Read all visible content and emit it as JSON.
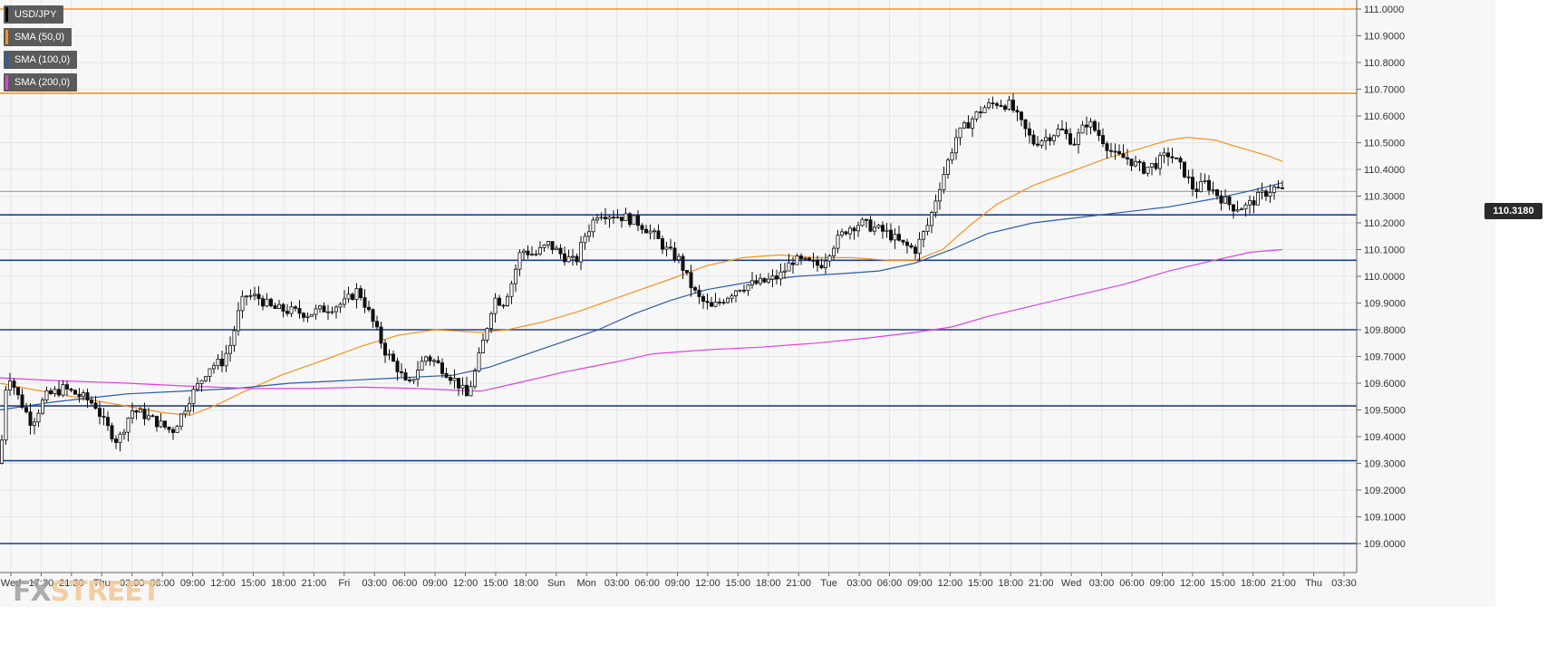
{
  "chart_data": {
    "type": "candlestick",
    "symbol": "USD/JPY",
    "legend": [
      {
        "label": "USD/JPY",
        "color": "#000000"
      },
      {
        "label": "SMA (50,0)",
        "color": "#f7931e"
      },
      {
        "label": "SMA (100,0)",
        "color": "#2a5caa"
      },
      {
        "label": "SMA (200,0)",
        "color": "#e040e0"
      }
    ],
    "y_ticks": [
      "111.0000",
      "110.9000",
      "110.8000",
      "110.7000",
      "110.6000",
      "110.5000",
      "110.4000",
      "110.3000",
      "110.2000",
      "110.1000",
      "110.0000",
      "109.9000",
      "109.8000",
      "109.7000",
      "109.6000",
      "109.5000",
      "109.4000",
      "109.3000",
      "109.2000",
      "109.1000",
      "109.0000"
    ],
    "ylim": [
      108.93,
      111.03
    ],
    "x_ticks": [
      "Wed",
      "17:30",
      "21:30",
      "Thu",
      "03:00",
      "06:00",
      "09:00",
      "12:00",
      "15:00",
      "18:00",
      "21:00",
      "Fri",
      "03:00",
      "06:00",
      "09:00",
      "12:00",
      "15:00",
      "18:00",
      "Sun",
      "Mon",
      "03:00",
      "06:00",
      "09:00",
      "12:00",
      "15:00",
      "18:00",
      "21:00",
      "Tue",
      "03:00",
      "06:00",
      "09:00",
      "12:00",
      "15:00",
      "18:00",
      "21:00",
      "Wed",
      "03:00",
      "06:00",
      "09:00",
      "12:00",
      "15:00",
      "18:00",
      "21:00",
      "Thu",
      "03:30"
    ],
    "horizontal_levels": [
      {
        "value": 111.0,
        "color": "#f7931e"
      },
      {
        "value": 110.685,
        "color": "#f7931e"
      },
      {
        "value": 110.23,
        "color": "#1f3f8f"
      },
      {
        "value": 110.06,
        "color": "#1f3f8f"
      },
      {
        "value": 109.8,
        "color": "#1f3f8f"
      },
      {
        "value": 109.515,
        "color": "#1f3f8f"
      },
      {
        "value": 109.31,
        "color": "#1f3f8f"
      },
      {
        "value": 109.0,
        "color": "#1f3f8f"
      }
    ],
    "last_price": "110.3180",
    "close_path": [
      [
        0,
        109.3
      ],
      [
        8,
        109.65
      ],
      [
        20,
        109.55
      ],
      [
        35,
        109.45
      ],
      [
        50,
        109.55
      ],
      [
        70,
        109.58
      ],
      [
        90,
        109.55
      ],
      [
        105,
        109.52
      ],
      [
        115,
        109.45
      ],
      [
        130,
        109.38
      ],
      [
        145,
        109.5
      ],
      [
        160,
        109.48
      ],
      [
        175,
        109.45
      ],
      [
        190,
        109.42
      ],
      [
        200,
        109.48
      ],
      [
        210,
        109.55
      ],
      [
        220,
        109.6
      ],
      [
        230,
        109.66
      ],
      [
        245,
        109.68
      ],
      [
        255,
        109.75
      ],
      [
        262,
        109.85
      ],
      [
        270,
        109.93
      ],
      [
        285,
        109.92
      ],
      [
        300,
        109.88
      ],
      [
        320,
        109.87
      ],
      [
        340,
        109.86
      ],
      [
        360,
        109.88
      ],
      [
        380,
        109.9
      ],
      [
        395,
        109.95
      ],
      [
        405,
        109.88
      ],
      [
        415,
        109.8
      ],
      [
        425,
        109.72
      ],
      [
        440,
        109.65
      ],
      [
        450,
        109.58
      ],
      [
        460,
        109.65
      ],
      [
        470,
        109.7
      ],
      [
        480,
        109.68
      ],
      [
        490,
        109.65
      ],
      [
        505,
        109.6
      ],
      [
        515,
        109.55
      ],
      [
        525,
        109.65
      ],
      [
        535,
        109.78
      ],
      [
        545,
        109.92
      ],
      [
        555,
        109.9
      ],
      [
        565,
        109.98
      ],
      [
        575,
        110.1
      ],
      [
        590,
        110.08
      ],
      [
        605,
        110.12
      ],
      [
        620,
        110.08
      ],
      [
        635,
        110.05
      ],
      [
        645,
        110.15
      ],
      [
        660,
        110.24
      ],
      [
        675,
        110.23
      ],
      [
        690,
        110.22
      ],
      [
        705,
        110.2
      ],
      [
        720,
        110.16
      ],
      [
        735,
        110.1
      ],
      [
        750,
        110.06
      ],
      [
        760,
        109.98
      ],
      [
        770,
        109.92
      ],
      [
        785,
        109.88
      ],
      [
        800,
        109.92
      ],
      [
        815,
        109.96
      ],
      [
        830,
        109.97
      ],
      [
        845,
        109.98
      ],
      [
        860,
        110.0
      ],
      [
        875,
        110.06
      ],
      [
        890,
        110.05
      ],
      [
        905,
        110.04
      ],
      [
        920,
        110.12
      ],
      [
        935,
        110.18
      ],
      [
        950,
        110.2
      ],
      [
        965,
        110.18
      ],
      [
        980,
        110.16
      ],
      [
        995,
        110.12
      ],
      [
        1010,
        110.1
      ],
      [
        1025,
        110.2
      ],
      [
        1035,
        110.32
      ],
      [
        1045,
        110.42
      ],
      [
        1055,
        110.52
      ],
      [
        1070,
        110.58
      ],
      [
        1085,
        110.63
      ],
      [
        1100,
        110.65
      ],
      [
        1115,
        110.64
      ],
      [
        1125,
        110.58
      ],
      [
        1140,
        110.5
      ],
      [
        1155,
        110.52
      ],
      [
        1170,
        110.55
      ],
      [
        1185,
        110.5
      ],
      [
        1200,
        110.58
      ],
      [
        1215,
        110.52
      ],
      [
        1230,
        110.45
      ],
      [
        1245,
        110.44
      ],
      [
        1260,
        110.4
      ],
      [
        1275,
        110.42
      ],
      [
        1290,
        110.46
      ],
      [
        1305,
        110.4
      ],
      [
        1318,
        110.32
      ],
      [
        1330,
        110.35
      ],
      [
        1345,
        110.3
      ],
      [
        1360,
        110.26
      ],
      [
        1375,
        110.26
      ],
      [
        1390,
        110.3
      ],
      [
        1405,
        110.33
      ],
      [
        1415,
        110.32
      ]
    ],
    "sma50": [
      [
        0,
        109.6
      ],
      [
        30,
        109.58
      ],
      [
        80,
        109.55
      ],
      [
        130,
        109.52
      ],
      [
        180,
        109.49
      ],
      [
        210,
        109.48
      ],
      [
        240,
        109.52
      ],
      [
        270,
        109.57
      ],
      [
        310,
        109.63
      ],
      [
        360,
        109.69
      ],
      [
        400,
        109.74
      ],
      [
        440,
        109.78
      ],
      [
        480,
        109.8
      ],
      [
        530,
        109.79
      ],
      [
        560,
        109.8
      ],
      [
        600,
        109.83
      ],
      [
        640,
        109.87
      ],
      [
        690,
        109.93
      ],
      [
        740,
        109.99
      ],
      [
        780,
        110.04
      ],
      [
        820,
        110.07
      ],
      [
        860,
        110.08
      ],
      [
        900,
        110.07
      ],
      [
        940,
        110.07
      ],
      [
        980,
        110.06
      ],
      [
        1010,
        110.06
      ],
      [
        1040,
        110.1
      ],
      [
        1070,
        110.19
      ],
      [
        1100,
        110.27
      ],
      [
        1140,
        110.34
      ],
      [
        1180,
        110.39
      ],
      [
        1220,
        110.44
      ],
      [
        1260,
        110.48
      ],
      [
        1290,
        110.51
      ],
      [
        1310,
        110.52
      ],
      [
        1340,
        110.51
      ],
      [
        1370,
        110.48
      ],
      [
        1400,
        110.45
      ],
      [
        1415,
        110.43
      ]
    ],
    "sma100": [
      [
        0,
        109.5
      ],
      [
        60,
        109.53
      ],
      [
        140,
        109.56
      ],
      [
        200,
        109.57
      ],
      [
        260,
        109.58
      ],
      [
        320,
        109.6
      ],
      [
        380,
        109.61
      ],
      [
        440,
        109.62
      ],
      [
        500,
        109.63
      ],
      [
        540,
        109.66
      ],
      [
        600,
        109.73
      ],
      [
        660,
        109.8
      ],
      [
        700,
        109.86
      ],
      [
        740,
        109.91
      ],
      [
        780,
        109.95
      ],
      [
        830,
        109.98
      ],
      [
        880,
        110.0
      ],
      [
        930,
        110.01
      ],
      [
        970,
        110.02
      ],
      [
        1010,
        110.05
      ],
      [
        1050,
        110.1
      ],
      [
        1090,
        110.16
      ],
      [
        1140,
        110.2
      ],
      [
        1190,
        110.22
      ],
      [
        1240,
        110.24
      ],
      [
        1290,
        110.26
      ],
      [
        1340,
        110.29
      ],
      [
        1380,
        110.32
      ],
      [
        1415,
        110.35
      ]
    ],
    "sma200": [
      [
        0,
        109.62
      ],
      [
        60,
        109.61
      ],
      [
        140,
        109.6
      ],
      [
        200,
        109.59
      ],
      [
        280,
        109.58
      ],
      [
        340,
        109.58
      ],
      [
        400,
        109.585
      ],
      [
        460,
        109.58
      ],
      [
        530,
        109.57
      ],
      [
        570,
        109.6
      ],
      [
        620,
        109.64
      ],
      [
        680,
        109.68
      ],
      [
        720,
        109.71
      ],
      [
        780,
        109.725
      ],
      [
        840,
        109.735
      ],
      [
        900,
        109.75
      ],
      [
        960,
        109.77
      ],
      [
        1010,
        109.79
      ],
      [
        1050,
        109.81
      ],
      [
        1090,
        109.85
      ],
      [
        1140,
        109.89
      ],
      [
        1190,
        109.93
      ],
      [
        1240,
        109.97
      ],
      [
        1290,
        110.02
      ],
      [
        1340,
        110.06
      ],
      [
        1380,
        110.09
      ],
      [
        1415,
        110.1
      ]
    ]
  },
  "watermark": {
    "fx": "FX",
    "street": "STREET"
  }
}
